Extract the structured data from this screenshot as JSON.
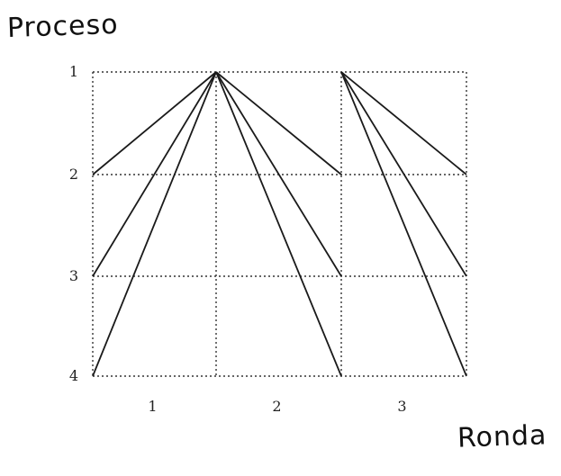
{
  "labels": {
    "y_axis": "Proceso",
    "x_axis": "Ronda"
  },
  "processes": [
    "1",
    "2",
    "3",
    "4"
  ],
  "rounds": [
    "1",
    "2",
    "3"
  ],
  "messages": [
    {
      "from_process": 1,
      "from_round_boundary": 1,
      "to_process": 2,
      "to_round_boundary": 0
    },
    {
      "from_process": 1,
      "from_round_boundary": 1,
      "to_process": 3,
      "to_round_boundary": 0
    },
    {
      "from_process": 1,
      "from_round_boundary": 1,
      "to_process": 4,
      "to_round_boundary": 0
    },
    {
      "from_process": 1,
      "from_round_boundary": 1,
      "to_process": 2,
      "to_round_boundary": 2
    },
    {
      "from_process": 1,
      "from_round_boundary": 1,
      "to_process": 3,
      "to_round_boundary": 2
    },
    {
      "from_process": 1,
      "from_round_boundary": 1,
      "to_process": 4,
      "to_round_boundary": 2
    },
    {
      "from_process": 1,
      "from_round_boundary": 2,
      "to_process": 2,
      "to_round_boundary": 3
    },
    {
      "from_process": 1,
      "from_round_boundary": 2,
      "to_process": 3,
      "to_round_boundary": 3
    },
    {
      "from_process": 1,
      "from_round_boundary": 2,
      "to_process": 4,
      "to_round_boundary": 3
    }
  ],
  "colors": {
    "line": "#1a1a1a",
    "grid": "#333333"
  }
}
